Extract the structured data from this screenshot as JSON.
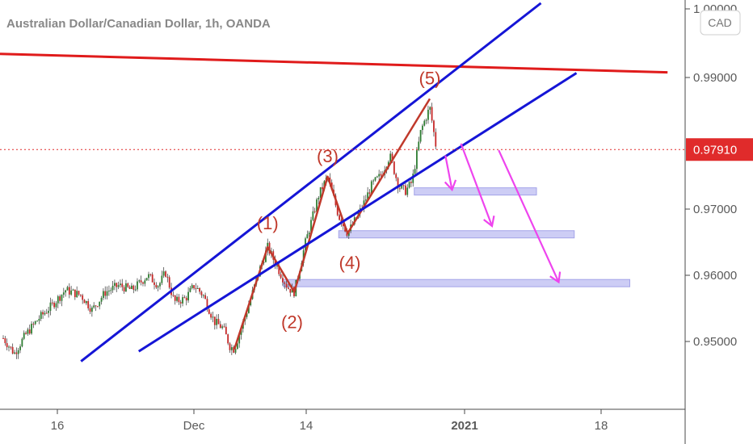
{
  "header": {
    "title": "Australian Dollar/Canadian Dollar, 1h, OANDA",
    "currency_badge": "CAD"
  },
  "colors": {
    "resistance": "#e01b1b",
    "channel": "#1515d6",
    "waves": "#c0392b",
    "arrows": "#ee44ee",
    "zones_fill": "#c8c8f5",
    "zones_stroke": "#9a9ae6",
    "current_price_bg": "#e02b2b"
  },
  "current_price": {
    "label": "0.97910",
    "value": 0.9791
  },
  "chart_data": {
    "type": "candlestick",
    "title": "Australian Dollar/Canadian Dollar, 1h, OANDA",
    "x_ticks": [
      "16",
      "Dec",
      "14",
      "2021",
      "18"
    ],
    "y_ticks": [
      "0.95000",
      "0.96000",
      "0.97000",
      "0.99000",
      "1.00000"
    ],
    "ylim": [
      0.94,
      1.0
    ],
    "price_path": [
      [
        0.0,
        0.9505
      ],
      [
        0.5,
        0.9482
      ],
      [
        1.0,
        0.951
      ],
      [
        1.6,
        0.9535
      ],
      [
        2.2,
        0.9555
      ],
      [
        2.8,
        0.9578
      ],
      [
        3.5,
        0.957
      ],
      [
        4.0,
        0.9548
      ],
      [
        4.6,
        0.9575
      ],
      [
        5.2,
        0.9585
      ],
      [
        5.8,
        0.9578
      ],
      [
        6.5,
        0.96
      ],
      [
        7.0,
        0.9585
      ],
      [
        7.3,
        0.9605
      ],
      [
        7.7,
        0.956
      ],
      [
        8.2,
        0.9565
      ],
      [
        8.6,
        0.9585
      ],
      [
        9.0,
        0.957
      ],
      [
        9.5,
        0.953
      ],
      [
        9.9,
        0.952
      ],
      [
        10.2,
        0.9493
      ],
      [
        10.4,
        0.9488
      ],
      [
        11.0,
        0.955
      ],
      [
        11.6,
        0.9615
      ],
      [
        11.9,
        0.9643
      ],
      [
        12.3,
        0.9615
      ],
      [
        12.8,
        0.9582
      ],
      [
        13.1,
        0.9575
      ],
      [
        13.6,
        0.965
      ],
      [
        14.2,
        0.9722
      ],
      [
        14.6,
        0.975
      ],
      [
        15.1,
        0.969
      ],
      [
        15.5,
        0.9664
      ],
      [
        16.1,
        0.97
      ],
      [
        16.6,
        0.9738
      ],
      [
        17.0,
        0.9752
      ],
      [
        17.4,
        0.9782
      ],
      [
        17.8,
        0.9735
      ],
      [
        18.1,
        0.9728
      ],
      [
        18.4,
        0.9742
      ],
      [
        18.8,
        0.982
      ],
      [
        19.2,
        0.9855
      ],
      [
        19.5,
        0.9791
      ]
    ],
    "resistance_line": [
      [
        -4.3,
        0.994
      ],
      [
        29.9,
        0.9908
      ]
    ],
    "channel_upper": [
      [
        3.5,
        0.947
      ],
      [
        24.2,
        1.0013
      ]
    ],
    "channel_lower": [
      [
        6.1,
        0.9485
      ],
      [
        25.8,
        0.9907
      ]
    ],
    "impulse_waves": [
      [
        10.4,
        0.9488
      ],
      [
        11.9,
        0.9643
      ],
      [
        13.1,
        0.9575
      ],
      [
        14.6,
        0.975
      ],
      [
        15.5,
        0.9664
      ],
      [
        19.2,
        0.9868
      ]
    ],
    "wave_labels": [
      {
        "label": "(1)",
        "x": 11.9,
        "y": 0.967
      },
      {
        "label": "(2)",
        "x": 13.0,
        "y": 0.952
      },
      {
        "label": "(3)",
        "x": 14.6,
        "y": 0.9772
      },
      {
        "label": "(4)",
        "x": 15.6,
        "y": 0.961
      },
      {
        "label": "(5)",
        "x": 19.2,
        "y": 0.989
      }
    ],
    "zones": [
      {
        "x1": 18.5,
        "x2": 24.0,
        "low": 0.9722,
        "high": 0.9733
      },
      {
        "x1": 15.1,
        "x2": 25.7,
        "low": 0.9657,
        "high": 0.9668
      },
      {
        "x1": 12.6,
        "x2": 28.2,
        "low": 0.9583,
        "high": 0.9594
      }
    ],
    "forecast_arrows": [
      {
        "from": [
          19.9,
          0.9782
        ],
        "to": [
          20.2,
          0.973
        ]
      },
      {
        "from": [
          20.6,
          0.98
        ],
        "to": [
          22.0,
          0.9675
        ]
      },
      {
        "from": [
          22.3,
          0.979
        ],
        "to": [
          25.0,
          0.959
        ]
      }
    ]
  }
}
